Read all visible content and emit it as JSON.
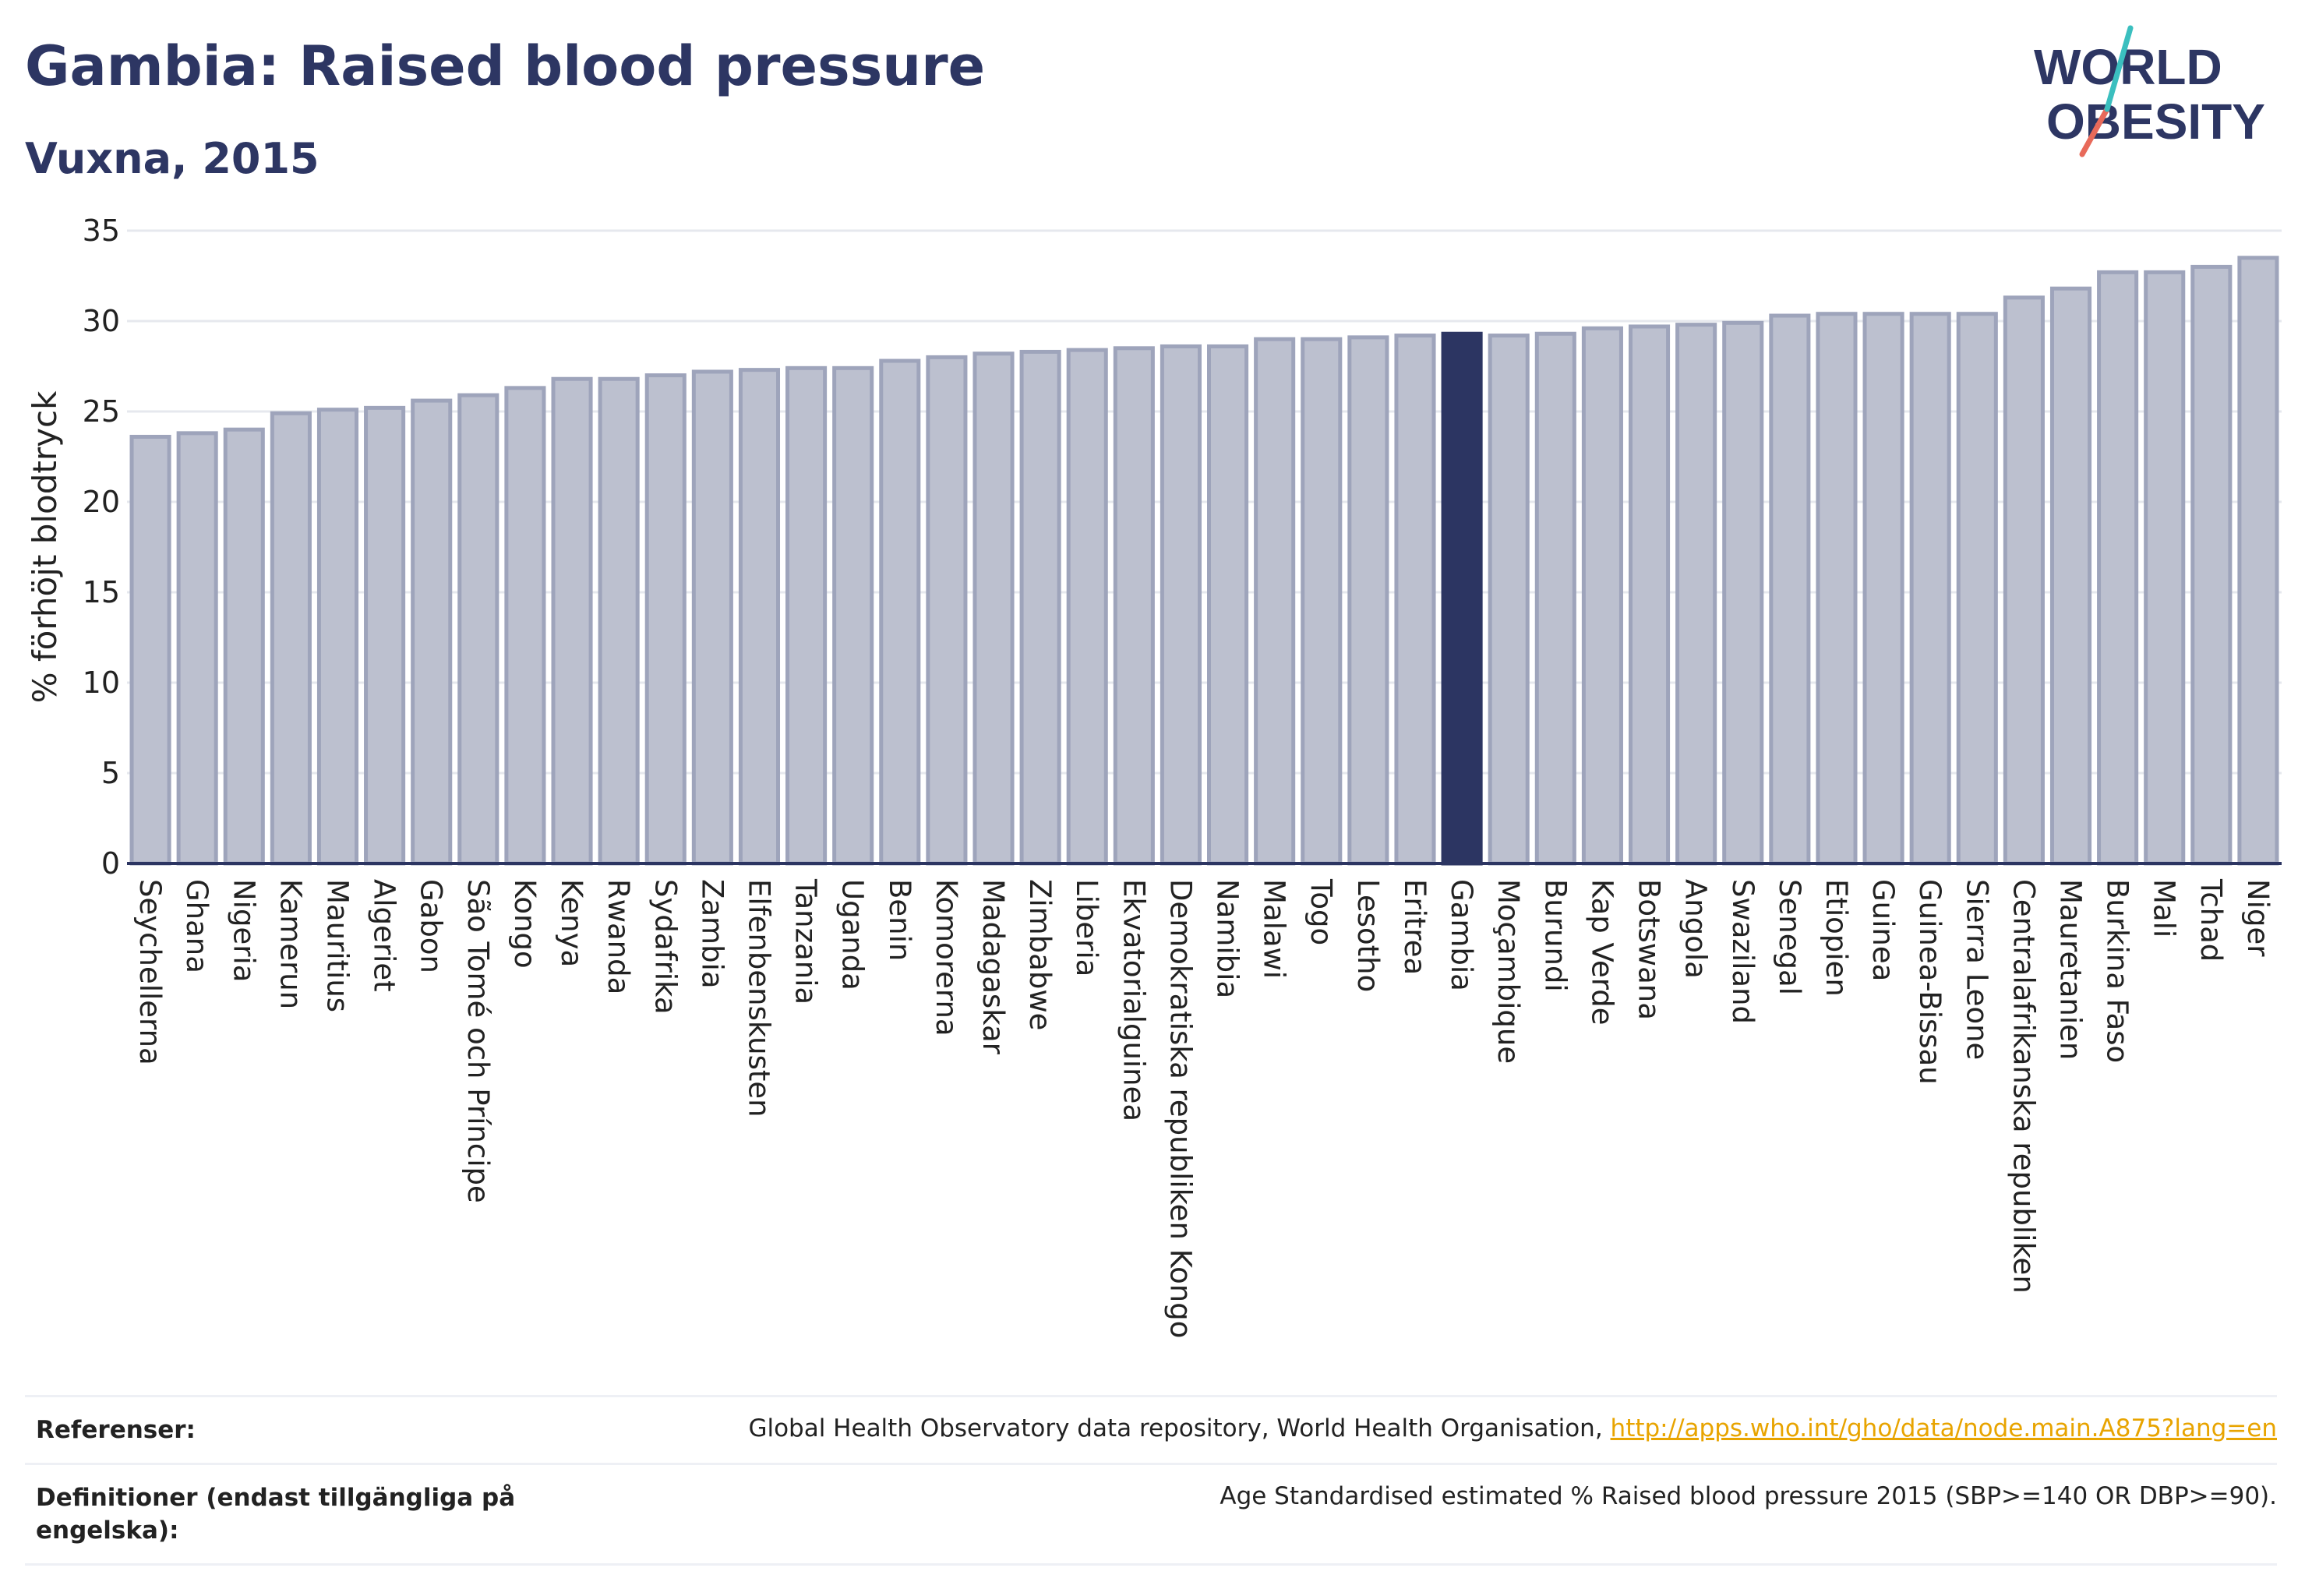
{
  "header": {
    "title": "Gambia: Raised blood pressure",
    "subtitle": "Vuxna, 2015"
  },
  "logo": {
    "line1": "WORLD",
    "line2": "OBESITY"
  },
  "chart_data": {
    "type": "bar",
    "title": "Gambia: Raised blood pressure",
    "subtitle": "Vuxna, 2015",
    "xlabel": "",
    "ylabel": "% förhöjt blodtryck",
    "ylim": [
      0,
      35
    ],
    "yticks": [
      0,
      5,
      10,
      15,
      20,
      25,
      30,
      35
    ],
    "grid": true,
    "highlight": "Gambia",
    "colors": {
      "bar": "#bcc0cf",
      "bar_border": "#9ea4bb",
      "highlight": "#2c3562",
      "axis": "#2c3562",
      "grid": "#e6e8ee"
    },
    "categories": [
      "Seychellerna",
      "Ghana",
      "Nigeria",
      "Kamerun",
      "Mauritius",
      "Algeriet",
      "Gabon",
      "São Tomé och Príncipe",
      "Kongo",
      "Kenya",
      "Rwanda",
      "Sydafrika",
      "Zambia",
      "Elfenbenskusten",
      "Tanzania",
      "Uganda",
      "Benin",
      "Komorerna",
      "Madagaskar",
      "Zimbabwe",
      "Liberia",
      "Ekvatorialguinea",
      "Demokratiska republiken Kongo",
      "Namibia",
      "Malawi",
      "Togo",
      "Lesotho",
      "Eritrea",
      "Gambia",
      "Moçambique",
      "Burundi",
      "Kap Verde",
      "Botswana",
      "Angola",
      "Swaziland",
      "Senegal",
      "Etiopien",
      "Guinea",
      "Guinea-Bissau",
      "Sierra Leone",
      "Centralafrikanska republiken",
      "Mauretanien",
      "Burkina Faso",
      "Mali",
      "Tchad",
      "Niger"
    ],
    "values": [
      23.6,
      23.8,
      24.0,
      24.9,
      25.1,
      25.2,
      25.6,
      25.9,
      26.3,
      26.8,
      26.8,
      27.0,
      27.2,
      27.3,
      27.4,
      27.4,
      27.8,
      28.0,
      28.2,
      28.3,
      28.4,
      28.5,
      28.6,
      28.6,
      29.0,
      29.0,
      29.1,
      29.2,
      29.3,
      29.2,
      29.3,
      29.6,
      29.7,
      29.8,
      29.9,
      30.3,
      30.4,
      30.4,
      30.4,
      30.4,
      31.3,
      31.8,
      32.7,
      32.7,
      33.0,
      33.5
    ]
  },
  "footer": {
    "references_label": "Referenser:",
    "references_text": "Global Health Observatory data repository, World Health Organisation, ",
    "references_link": "http://apps.who.int/gho/data/node.main.A875?lang=en",
    "definitions_label": "Definitioner (endast tillgängliga på engelska):",
    "definitions_text": "Age Standardised estimated % Raised blood pressure 2015 (SBP>=140 OR DBP>=90)."
  }
}
